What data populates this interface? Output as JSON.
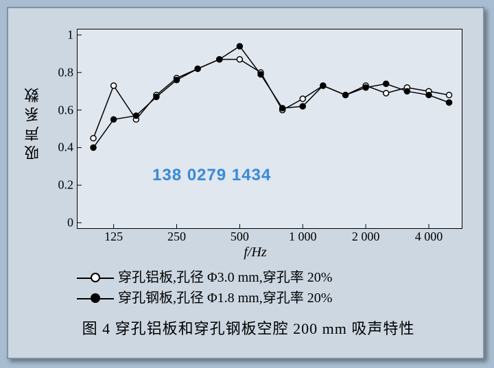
{
  "chart": {
    "type": "line",
    "background_color": "#e1e7ef",
    "panel_color": "#cdd7e2",
    "border_color": "#000000",
    "xlabel": "f/Hz",
    "ylabel": "吸声系数",
    "label_fontsize": 20,
    "ylim": [
      0,
      1
    ],
    "yticks": [
      0,
      0.2,
      0.4,
      0.6,
      0.8,
      1
    ],
    "x_scale": "log",
    "xticks": [
      125,
      250,
      500,
      1000,
      2000,
      4000
    ],
    "xtick_labels": [
      "125",
      "250",
      "500",
      "1 000",
      "2 000",
      "4 000"
    ],
    "freq_hz": [
      100,
      125,
      160,
      200,
      250,
      315,
      400,
      500,
      630,
      800,
      1000,
      1250,
      1600,
      2000,
      2500,
      3150,
      4000,
      5000
    ],
    "series": [
      {
        "name": "穿孔铝板,孔径 Φ3.0 mm,穿孔率 20%",
        "marker": "open-circle",
        "marker_size": 8,
        "line_color": "#000000",
        "marker_fill": "#ffffff",
        "marker_stroke": "#000000",
        "line_width": 1.5,
        "values": [
          0.45,
          0.73,
          0.55,
          0.68,
          0.77,
          0.82,
          0.87,
          0.87,
          0.8,
          0.6,
          0.66,
          0.73,
          0.68,
          0.73,
          0.69,
          0.72,
          0.7,
          0.68
        ]
      },
      {
        "name": "穿孔钢板,孔径 Φ1.8 mm,穿孔率 20%",
        "marker": "filled-circle",
        "marker_size": 8,
        "line_color": "#000000",
        "marker_fill": "#000000",
        "marker_stroke": "#000000",
        "line_width": 1.5,
        "values": [
          0.4,
          0.55,
          0.57,
          0.67,
          0.76,
          0.82,
          0.87,
          0.94,
          0.79,
          0.61,
          0.62,
          0.73,
          0.68,
          0.72,
          0.74,
          0.7,
          0.68,
          0.64
        ]
      }
    ]
  },
  "legend": {
    "position": "below",
    "items": [
      "穿孔铝板,孔径 Φ3.0 mm,穿孔率 20%",
      "穿孔钢板,孔径 Φ1.8 mm,穿孔率 20%"
    ]
  },
  "caption": "图 4  穿孔铝板和穿孔钢板空腔 200 mm 吸声特性",
  "watermark": "138 0279 1434"
}
